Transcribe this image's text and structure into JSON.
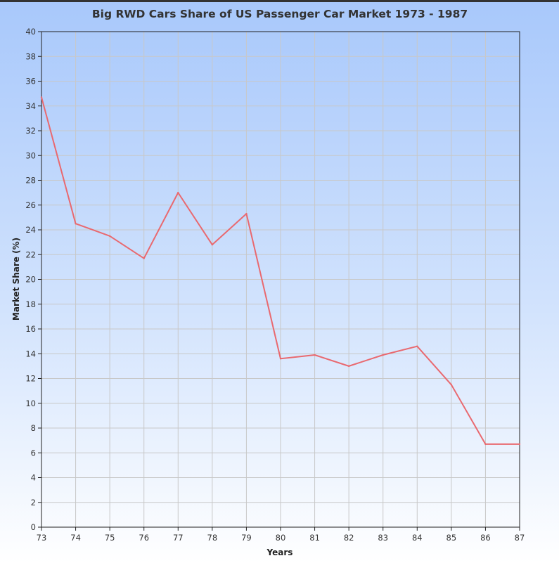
{
  "chart_data": {
    "type": "line",
    "title": "Big RWD Cars Share of US Passenger Car Market 1973 - 1987",
    "xlabel": "Years",
    "ylabel": "Market Share (%)",
    "categories": [
      "73",
      "74",
      "75",
      "76",
      "77",
      "78",
      "79",
      "80",
      "81",
      "82",
      "83",
      "84",
      "85",
      "86",
      "87"
    ],
    "series": [
      {
        "values": [
          34.7,
          24.5,
          23.5,
          21.7,
          27.0,
          22.8,
          25.3,
          13.6,
          13.9,
          13.0,
          13.9,
          14.6,
          11.5,
          6.7,
          6.7
        ]
      }
    ],
    "ylim": [
      0,
      40
    ],
    "y_ticks": [
      "0",
      "2",
      "4",
      "6",
      "8",
      "10",
      "12",
      "14",
      "16",
      "18",
      "20",
      "22",
      "24",
      "26",
      "28",
      "30",
      "32",
      "34",
      "36",
      "38",
      "40"
    ],
    "grid": true,
    "line_color": "#e9696f",
    "grid_color": "#c8c8c8"
  }
}
